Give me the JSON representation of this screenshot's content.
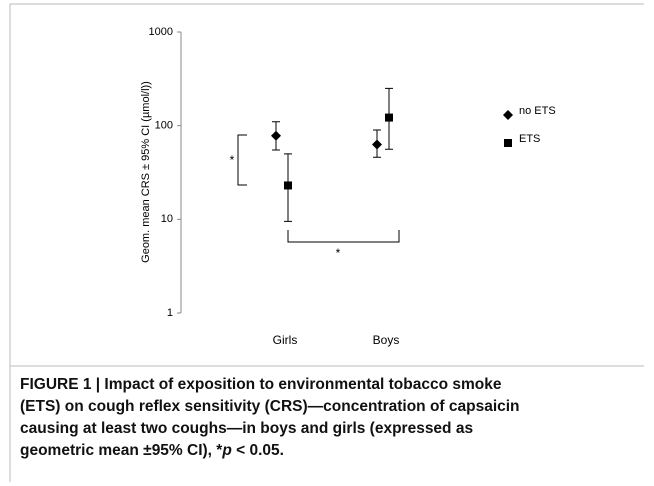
{
  "chart_data": {
    "type": "errorbar",
    "y_label": "Geom. mean CRS ± 95% CI (µmol/l))",
    "categories": [
      "Girls",
      "Boys"
    ],
    "log_scale": true,
    "ylim": [
      1,
      1000
    ],
    "yticks": [
      1,
      10,
      100,
      1000
    ],
    "legend": "right",
    "series": [
      {
        "name": "no ETS",
        "marker": "diamond",
        "color": "#000000",
        "values": [
          78,
          63
        ],
        "ci_low": [
          55,
          46
        ],
        "ci_high": [
          110,
          90
        ]
      },
      {
        "name": "ETS",
        "marker": "square",
        "color": "#000000",
        "values": [
          23,
          122
        ],
        "ci_low": [
          9.5,
          56
        ],
        "ci_high": [
          50,
          250
        ]
      }
    ],
    "annotations": [
      "*",
      "*"
    ],
    "caption": [
      "FIGURE 1 | Impact of exposition to environmental tobacco smoke",
      "(ETS) on cough reflex sensitivity (CRS)—concentration of capsaicin",
      "causing at least two coughs—in boys and girls (expressed as",
      "geometric mean ±95% CI), *",
      "p",
      " < 0.05."
    ]
  }
}
